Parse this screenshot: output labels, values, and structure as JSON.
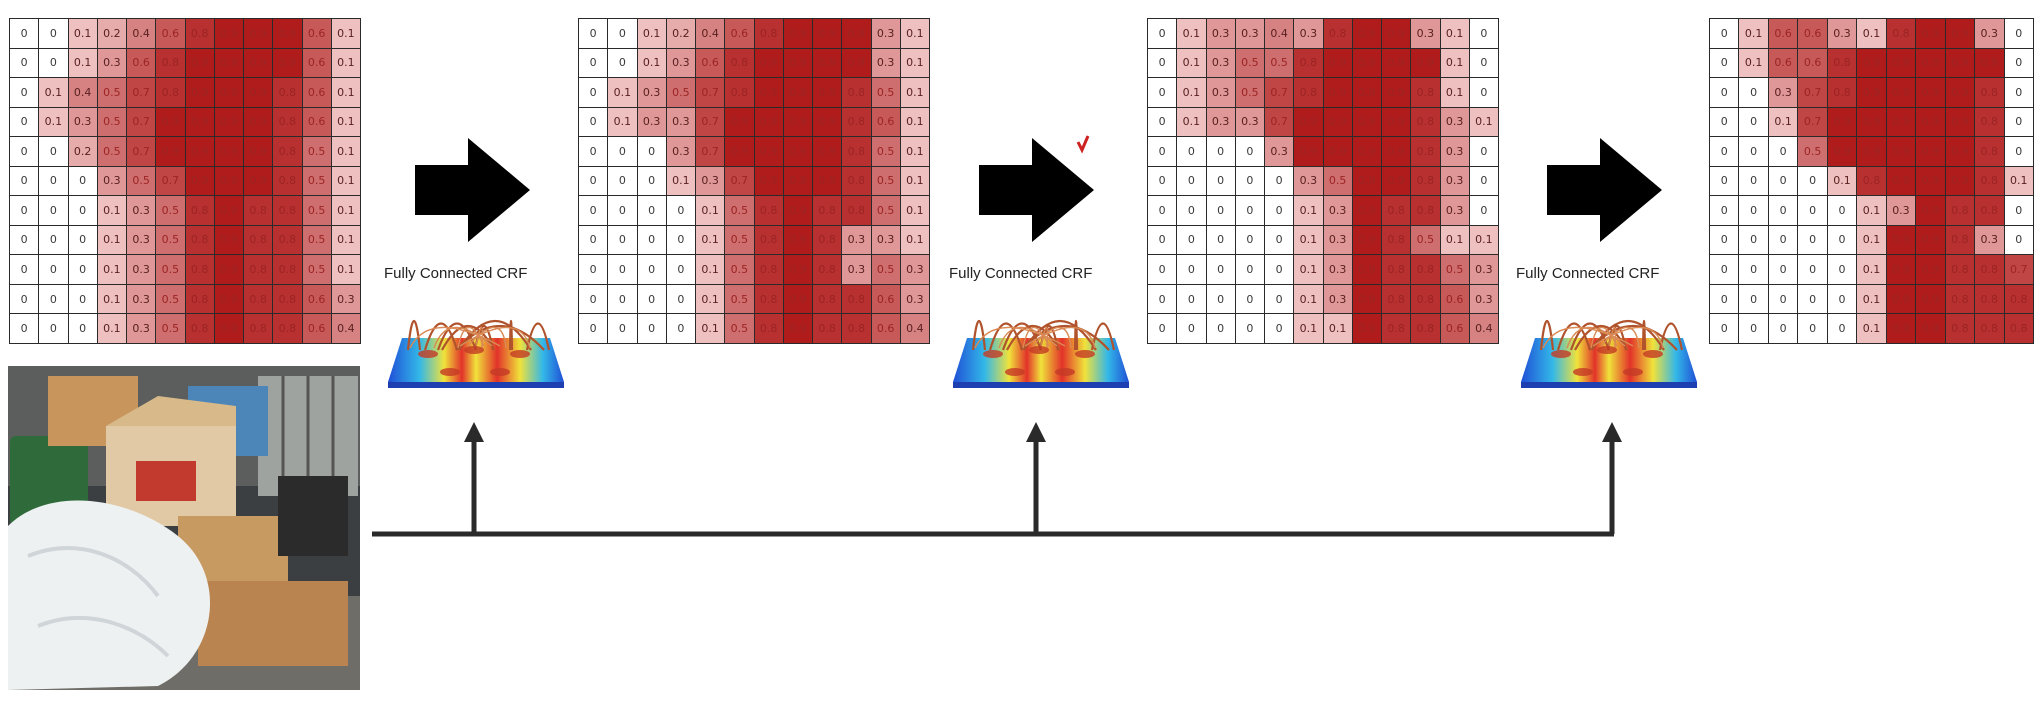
{
  "crf_label": "Fully Connected CRF",
  "grids": [
    {
      "name": "initial-probability-map",
      "rows": [
        [
          0,
          0,
          0.1,
          0.2,
          0.4,
          0.6,
          0.8,
          0.9,
          0.9,
          0.9,
          0.6,
          0.1
        ],
        [
          0,
          0,
          0.1,
          0.3,
          0.6,
          0.8,
          0.9,
          0.9,
          0.9,
          0.9,
          0.6,
          0.1
        ],
        [
          0,
          0.1,
          0.4,
          0.5,
          0.7,
          0.8,
          0.9,
          0.9,
          0.9,
          0.8,
          0.6,
          0.1
        ],
        [
          0,
          0.1,
          0.3,
          0.5,
          0.7,
          0.9,
          0.9,
          0.9,
          0.9,
          0.8,
          0.6,
          0.1
        ],
        [
          0,
          0,
          0.2,
          0.5,
          0.7,
          0.9,
          0.9,
          0.9,
          0.9,
          0.8,
          0.5,
          0.1
        ],
        [
          0,
          0,
          0,
          0.3,
          0.5,
          0.7,
          0.9,
          0.9,
          0.9,
          0.8,
          0.5,
          0.1
        ],
        [
          0,
          0,
          0,
          0.1,
          0.3,
          0.5,
          0.8,
          0.9,
          0.8,
          0.8,
          0.5,
          0.1
        ],
        [
          0,
          0,
          0,
          0.1,
          0.3,
          0.5,
          0.8,
          0.9,
          0.8,
          0.8,
          0.5,
          0.1
        ],
        [
          0,
          0,
          0,
          0.1,
          0.3,
          0.5,
          0.8,
          0.9,
          0.8,
          0.8,
          0.5,
          0.1
        ],
        [
          0,
          0,
          0,
          0.1,
          0.3,
          0.5,
          0.8,
          0.9,
          0.8,
          0.8,
          0.6,
          0.3
        ],
        [
          0,
          0,
          0,
          0.1,
          0.3,
          0.5,
          0.8,
          0.9,
          0.8,
          0.8,
          0.6,
          0.4
        ]
      ]
    },
    {
      "name": "crf-iteration-1-map",
      "rows": [
        [
          0,
          0,
          0.1,
          0.2,
          0.4,
          0.6,
          0.8,
          0.9,
          0.9,
          0.9,
          0.3,
          0.1
        ],
        [
          0,
          0,
          0.1,
          0.3,
          0.6,
          0.8,
          0.9,
          0.9,
          0.9,
          0.9,
          0.3,
          0.1
        ],
        [
          0,
          0.1,
          0.3,
          0.5,
          0.7,
          0.8,
          0.9,
          0.9,
          0.9,
          0.8,
          0.5,
          0.1
        ],
        [
          0,
          0.1,
          0.3,
          0.3,
          0.7,
          0.9,
          0.9,
          0.9,
          0.9,
          0.8,
          0.6,
          0.1
        ],
        [
          0,
          0,
          0,
          0.3,
          0.7,
          0.9,
          0.9,
          0.9,
          0.9,
          0.8,
          0.5,
          0.1
        ],
        [
          0,
          0,
          0,
          0.1,
          0.3,
          0.7,
          0.9,
          0.9,
          0.9,
          0.8,
          0.5,
          0.1
        ],
        [
          0,
          0,
          0,
          0,
          0.1,
          0.5,
          0.8,
          0.9,
          0.8,
          0.8,
          0.5,
          0.1
        ],
        [
          0,
          0,
          0,
          0,
          0.1,
          0.5,
          0.8,
          0.9,
          0.8,
          0.3,
          0.3,
          0.1
        ],
        [
          0,
          0,
          0,
          0,
          0.1,
          0.5,
          0.8,
          0.9,
          0.8,
          0.3,
          0.5,
          0.3
        ],
        [
          0,
          0,
          0,
          0,
          0.1,
          0.5,
          0.8,
          0.9,
          0.8,
          0.8,
          0.6,
          0.3
        ],
        [
          0,
          0,
          0,
          0,
          0.1,
          0.5,
          0.8,
          0.9,
          0.8,
          0.8,
          0.6,
          0.4
        ]
      ]
    },
    {
      "name": "crf-iteration-2-map",
      "rows": [
        [
          0,
          0.1,
          0.3,
          0.3,
          0.4,
          0.3,
          0.8,
          0.9,
          0.9,
          0.3,
          0.1,
          0
        ],
        [
          0,
          0.1,
          0.3,
          0.5,
          0.5,
          0.8,
          0.9,
          0.9,
          0.9,
          0.9,
          0.1,
          0
        ],
        [
          0,
          0.1,
          0.3,
          0.5,
          0.7,
          0.8,
          0.9,
          0.9,
          0.9,
          0.8,
          0.1,
          0
        ],
        [
          0,
          0.1,
          0.3,
          0.3,
          0.7,
          0.9,
          0.9,
          0.9,
          0.9,
          0.8,
          0.3,
          0.1
        ],
        [
          0,
          0,
          0,
          0,
          0.3,
          0.9,
          0.9,
          0.9,
          0.9,
          0.8,
          0.3,
          0
        ],
        [
          0,
          0,
          0,
          0,
          0,
          0.3,
          0.5,
          0.9,
          0.9,
          0.8,
          0.3,
          0
        ],
        [
          0,
          0,
          0,
          0,
          0,
          0.1,
          0.3,
          0.9,
          0.8,
          0.8,
          0.3,
          0
        ],
        [
          0,
          0,
          0,
          0,
          0,
          0.1,
          0.3,
          0.9,
          0.8,
          0.5,
          0.1,
          0.1
        ],
        [
          0,
          0,
          0,
          0,
          0,
          0.1,
          0.3,
          0.9,
          0.8,
          0.8,
          0.5,
          0.3
        ],
        [
          0,
          0,
          0,
          0,
          0,
          0.1,
          0.3,
          0.9,
          0.8,
          0.8,
          0.6,
          0.3
        ],
        [
          0,
          0,
          0,
          0,
          0,
          0.1,
          0.1,
          0.9,
          0.8,
          0.8,
          0.6,
          0.4
        ]
      ]
    },
    {
      "name": "crf-iteration-3-map",
      "rows": [
        [
          0,
          0.1,
          0.6,
          0.6,
          0.3,
          0.1,
          0.8,
          0.9,
          0.9,
          0.3,
          0
        ],
        [
          0,
          0.1,
          0.6,
          0.6,
          0.8,
          0.9,
          0.9,
          0.9,
          0.9,
          0.9,
          0
        ],
        [
          0,
          0,
          0.3,
          0.7,
          0.8,
          0.9,
          0.9,
          0.9,
          0.9,
          0.8,
          0
        ],
        [
          0,
          0,
          0.1,
          0.7,
          0.9,
          0.9,
          0.9,
          0.9,
          0.9,
          0.8,
          0
        ],
        [
          0,
          0,
          0,
          0.5,
          0.9,
          0.9,
          0.9,
          0.9,
          0.9,
          0.8,
          0
        ],
        [
          0,
          0,
          0,
          0,
          0.1,
          0.8,
          0.9,
          0.9,
          0.9,
          0.8,
          0.1
        ],
        [
          0,
          0,
          0,
          0,
          0,
          0.1,
          0.3,
          0.9,
          0.8,
          0.8,
          0
        ],
        [
          0,
          0,
          0,
          0,
          0,
          0.1,
          0.9,
          0.9,
          0.8,
          0.3,
          0
        ],
        [
          0,
          0,
          0,
          0,
          0,
          0.1,
          0.9,
          0.9,
          0.8,
          0.8,
          0.7
        ],
        [
          0,
          0,
          0,
          0,
          0,
          0.1,
          0.9,
          0.9,
          0.8,
          0.8,
          0.8
        ],
        [
          0,
          0,
          0,
          0,
          0,
          0.1,
          0.9,
          0.9,
          0.8,
          0.8,
          0.8
        ]
      ]
    }
  ]
}
